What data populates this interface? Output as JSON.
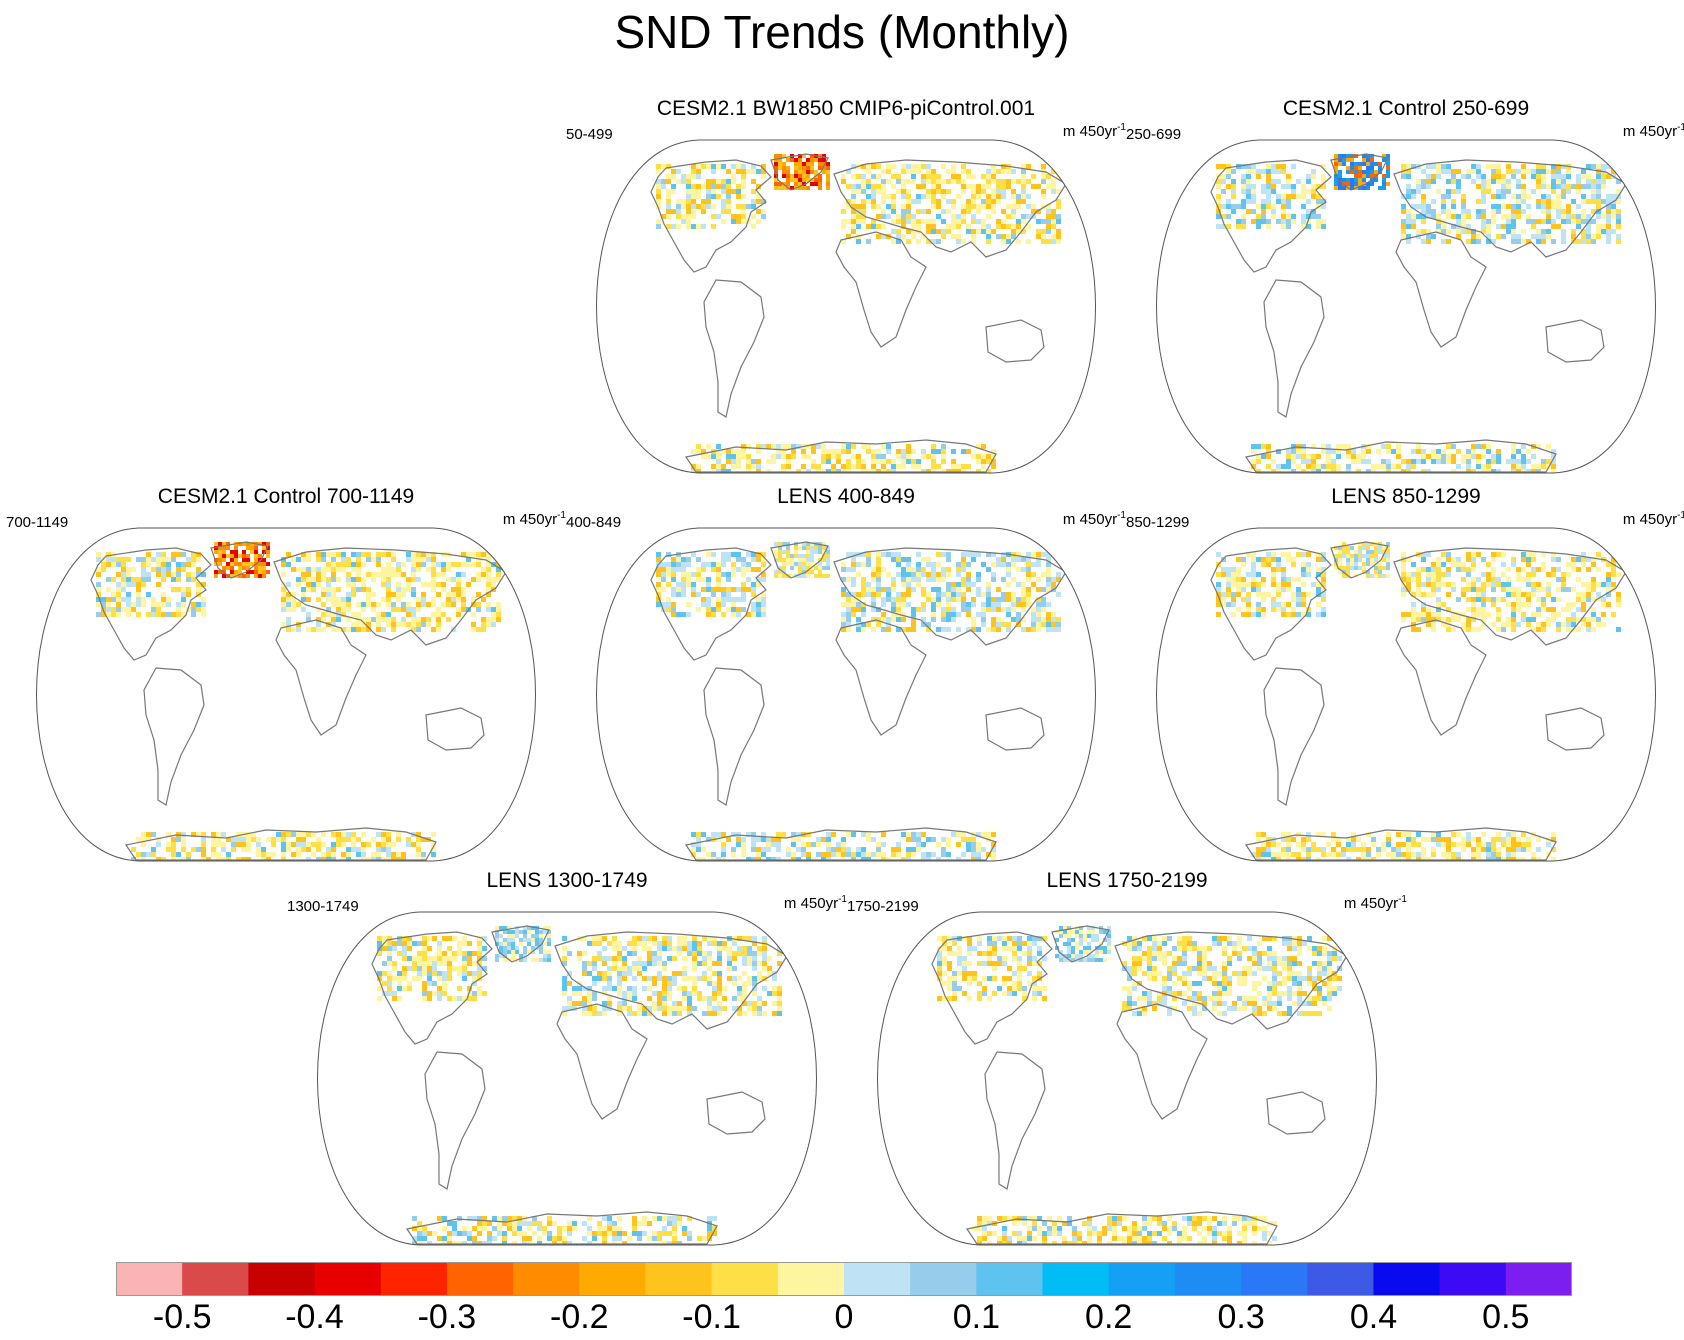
{
  "title": "SND Trends (Monthly)",
  "units_prefix": "m 450yr",
  "units_exp": "-1",
  "panels": [
    {
      "title": "CESM2.1 BW1850 CMIP6-piControl.001",
      "period": "50-499",
      "greenland": "strong-negative",
      "eurasia": "mixed-negative",
      "antarctica": "negative-south"
    },
    {
      "title": "CESM2.1 Control 250-699",
      "period": "250-699",
      "greenland": "strong-mixed",
      "eurasia": "mixed-positive",
      "antarctica": "mixed"
    },
    {
      "title": "CESM2.1 Control 700-1149",
      "period": "700-1149",
      "greenland": "strong-negative",
      "eurasia": "mixed-negative",
      "antarctica": "negative"
    },
    {
      "title": "LENS 400-849",
      "period": "400-849",
      "greenland": "mixed",
      "eurasia": "mixed-positive",
      "antarctica": "positive-west"
    },
    {
      "title": "LENS 850-1299",
      "period": "850-1299",
      "greenland": "mixed",
      "eurasia": "negative-central",
      "antarctica": "negative"
    },
    {
      "title": "LENS 1300-1749",
      "period": "1300-1749",
      "greenland": "mixed-positive",
      "eurasia": "mixed",
      "antarctica": "mixed"
    },
    {
      "title": "LENS 1750-2199",
      "period": "1750-2199",
      "greenland": "mixed-positive",
      "eurasia": "mixed",
      "antarctica": "negative"
    }
  ],
  "chart_data": {
    "type": "heatmap",
    "title": "SND Trends (Monthly)",
    "variable": "SND",
    "units": "m 450yr-1",
    "projection": "Robinson",
    "colorbar": {
      "levels": [
        -0.5,
        -0.45,
        -0.4,
        -0.35,
        -0.3,
        -0.25,
        -0.2,
        -0.15,
        -0.1,
        -0.05,
        0,
        0.05,
        0.1,
        0.15,
        0.2,
        0.25,
        0.3,
        0.35,
        0.4,
        0.45,
        0.5
      ],
      "tick_labels": [
        "-0.5",
        "-0.4",
        "-0.3",
        "-0.2",
        "-0.1",
        "0",
        "0.1",
        "0.2",
        "0.3",
        "0.4",
        "0.5"
      ],
      "tick_values": [
        -0.5,
        -0.4,
        -0.3,
        -0.2,
        -0.1,
        0,
        0.1,
        0.2,
        0.3,
        0.4,
        0.5
      ],
      "colors": [
        "#fbb4b4",
        "#da4a4a",
        "#c80000",
        "#e80000",
        "#ff2400",
        "#ff6400",
        "#ff8c00",
        "#ffaa00",
        "#ffc31e",
        "#ffdf46",
        "#fff5a0",
        "#bde3f5",
        "#96cdeb",
        "#5fc3f0",
        "#00bef5",
        "#14a0f5",
        "#1e8cf5",
        "#2a78f5",
        "#3c5ae6",
        "#0a0af0",
        "#3c0af5",
        "#7d1ef0"
      ]
    },
    "panels": [
      "CESM2.1 BW1850 CMIP6-piControl.001",
      "CESM2.1 Control 250-699",
      "CESM2.1 Control 700-1149",
      "LENS 400-849",
      "LENS 850-1299",
      "LENS 1300-1749",
      "LENS 1750-2199"
    ],
    "periods": [
      "50-499",
      "250-699",
      "700-1149",
      "400-849",
      "850-1299",
      "1300-1749",
      "1750-2199"
    ]
  }
}
